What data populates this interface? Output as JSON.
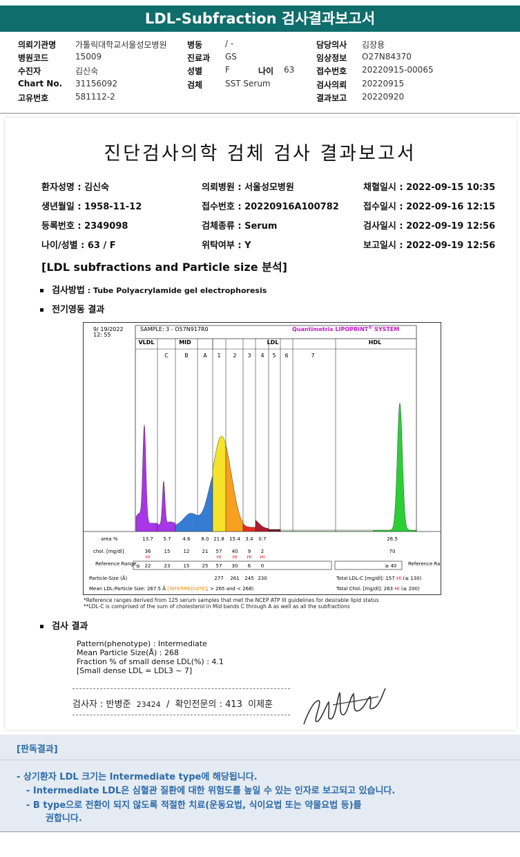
{
  "header": {
    "title": "LDL-Subfraction 검사결과보고서"
  },
  "info": {
    "row1": [
      {
        "label": "의뢰기관명",
        "value": "가톨릭대학교서울성모병원"
      },
      {
        "label": "병동",
        "value": "/ -"
      },
      {
        "label": "담당의사",
        "value": "김장용"
      }
    ],
    "row2": [
      {
        "label": "병원코드",
        "value": "15009"
      },
      {
        "label": "진료과",
        "value": "GS"
      },
      {
        "label": "임상정보",
        "value": "O27N84370"
      }
    ],
    "row3": [
      {
        "label": "수진자",
        "value": "김신숙"
      },
      {
        "label": "성별",
        "value": "F"
      },
      {
        "label": "나이",
        "value": "63"
      },
      {
        "label": "접수번호",
        "value": "20220915-00065"
      }
    ],
    "row4": [
      {
        "label": "Chart No.",
        "value": "31156092"
      },
      {
        "label": "검체",
        "value": "SST Serum"
      },
      {
        "label": "검사의뢰",
        "value": "20220915"
      }
    ],
    "row5": [
      {
        "label": "고유번호",
        "value": "581112-2"
      },
      {
        "label": "결과보고",
        "value": "20220920"
      }
    ]
  },
  "report": {
    "title": "진단검사의학 검체 검사 결과보고서",
    "patient": {
      "name": "환자성명 : 김신숙",
      "hospital": "의뢰병원 : 서울성모병원",
      "collect": "채혈일시 : 2022-09-15 10:35",
      "birth": "생년월일 : 1958-11-12",
      "accession": "접수번호 : 20220916A100782",
      "received": "접수일시 : 2022-09-16 12:15",
      "regno": "등록번호 : 2349098",
      "specimen": "검체종류 : Serum",
      "tested": "검사일시 : 2022-09-19 12:56",
      "agesex": "나이/성별 : 63 / F",
      "outsourced": "위탁여부 : Y",
      "reported": "보고일시 : 2022-09-19 12:56"
    },
    "section_title": "[LDL subfractions and Particle size 분석]",
    "method_label": "검사방법",
    "method_value": " : Tube Polyacrylamide gel electrophoresis",
    "electro_label": "전기영동 결과",
    "result_label": "검사 결과",
    "results": [
      "Pattern(phenotype) : Intermediate",
      "Mean Particle Size(Å) : 268",
      "Fraction % of small dense LDL(%) : 4.1",
      "[Small dense LDL = LDL3 ~ 7]"
    ],
    "signature": {
      "tester_label": "검사자 : 반병준",
      "tester_id": "23424",
      "slash": "/",
      "doctor_label": "확인전문의 : 413",
      "doctor_name": "이제훈"
    }
  },
  "chart_data": {
    "type": "area",
    "date": "9/ 19/2022",
    "time": "12: 55",
    "sample": "SAMPLE:  3 - O57N917R0",
    "brand": "Quantimetrix LIPOPRINT",
    "brand_sup": "®",
    "brand_tail": " SYSTEM",
    "groups": [
      "VLDL",
      "MID",
      "LDL",
      "HDL"
    ],
    "bands": [
      "C",
      "B",
      "A",
      "1",
      "2",
      "3",
      "4",
      "5",
      "6",
      "7"
    ],
    "rows": {
      "area_label": "area %",
      "area": [
        "13.7",
        "5.7",
        "4.6",
        "8.0",
        "21.8",
        "15.4",
        "3.4",
        "0.7",
        "26.5"
      ],
      "chol_label": "chol. [mg/dl]",
      "chol": [
        "36",
        "15",
        "12",
        "21",
        "57",
        "40",
        "9",
        "2",
        "70"
      ],
      "hi_flags": [
        "HI",
        "HI",
        "HI",
        "HI",
        "HI"
      ],
      "ref_label": "Reference Range",
      "ref_lt": "≤",
      "ref": [
        "22",
        "23",
        "15",
        "25",
        "57",
        "30",
        "6",
        "0"
      ],
      "hdl_ref": "≥ 40",
      "particle_label": "Particle-Size (Å)",
      "particle": [
        "277",
        "261",
        "245",
        "230"
      ],
      "mean_label": "Mean LDL-Particle Size:",
      "mean_value": "267.5 Å",
      "mean_flag": "[INTERMEDIATE]",
      "mean_range": "; > 265 and < 268)",
      "total_ldl_label": "Total LDL-C [mg/dl]:",
      "total_ldl_value": "157",
      "total_ldl_ref": "(≤ 130)",
      "total_chol_label": "Total Chol. [mg/dl]:",
      "total_chol_value": "263",
      "total_chol_ref": "(≤ 200)",
      "hi": "HI"
    },
    "footnotes": [
      "*Reference ranges derived from 125 serum samples that met the NCEP ATP III guidelines for desirable lipid status",
      "**LDL-C is comprised of the sum of cholesterol in Mid bands C through A as well as all the subfractions"
    ],
    "colors": {
      "vldl": "#a12be6",
      "mid": "#2a76d2",
      "ldl1": "#f3e21c",
      "ldl2": "#f79a12",
      "ldl3": "#e3231a",
      "ldl4": "#a80f25",
      "ldl5": "#6d0a18",
      "hdl": "#1fcc2a",
      "brand": "#c914c9",
      "hi": "#e01010",
      "flag": "#f08a00"
    }
  },
  "interpretation": {
    "heading": "[판독결과]",
    "line1": "-  상기환자 LDL 크기는 Intermediate type에 해당됩니다.",
    "line2": "-  Intermediate LDL은 심혈관 질환에 대한 위험도를 높일 수 있는 인자로 보고되고 있습니다.",
    "line3": "-  B type으로 전환이 되지 않도록 적절한 치료(운동요법, 식이요법 또는 약물요법 등)를",
    "line4": "권합니다."
  }
}
